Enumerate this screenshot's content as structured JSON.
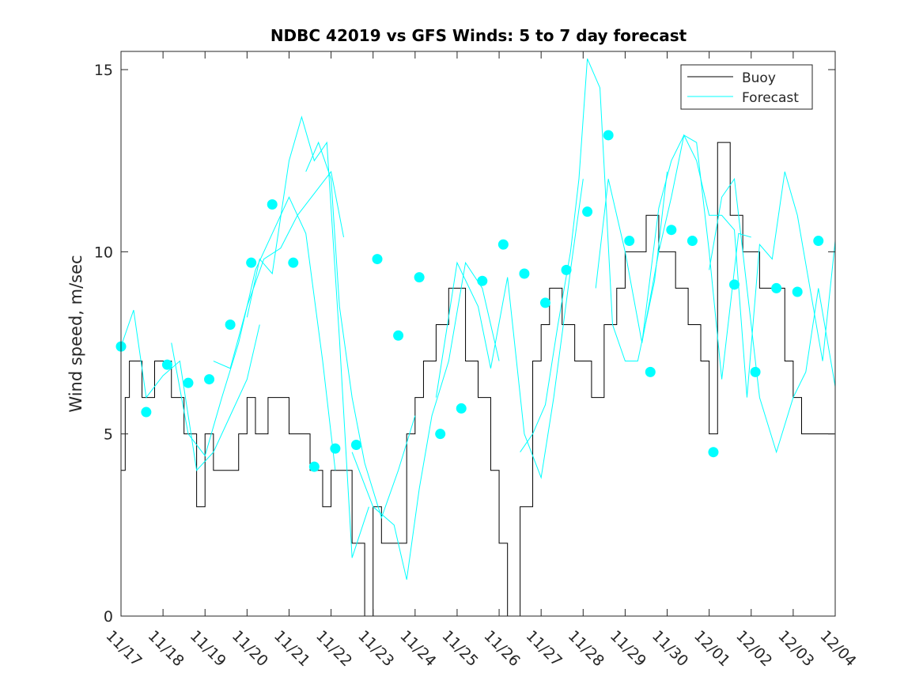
{
  "chart_data": {
    "type": "line",
    "title": "NDBC 42019 vs GFS Winds: 5 to 7 day forecast",
    "xlabel": "",
    "ylabel": "Wind speed, m/sec",
    "xlim": [
      0,
      17
    ],
    "ylim": [
      0,
      15.5
    ],
    "yticks": [
      0,
      5,
      10,
      15
    ],
    "xtick_labels": [
      "11/17",
      "11/18",
      "11/19",
      "11/20",
      "11/21",
      "11/22",
      "11/23",
      "11/24",
      "11/25",
      "11/26",
      "11/27",
      "11/28",
      "11/29",
      "11/30",
      "12/01",
      "12/02",
      "12/03",
      "12/04"
    ],
    "legend": {
      "position": "top-right",
      "entries": [
        "Buoy",
        "Forecast"
      ]
    },
    "colors": {
      "buoy": "#000000",
      "forecast": "#00ffff",
      "axis": "#262626"
    },
    "series": [
      {
        "name": "Buoy",
        "type": "step",
        "x": [
          0.0,
          0.1,
          0.2,
          0.3,
          0.5,
          0.8,
          1.0,
          1.2,
          1.5,
          1.8,
          2.0,
          2.2,
          2.5,
          2.8,
          3.0,
          3.2,
          3.5,
          3.8,
          4.0,
          4.2,
          4.5,
          4.8,
          5.0,
          5.2,
          5.5,
          5.8,
          6.0,
          6.2,
          6.5,
          6.8,
          7.0,
          7.2,
          7.5,
          7.8,
          8.0,
          8.2,
          8.5,
          8.8,
          9.0,
          9.2,
          9.5,
          9.8,
          10.0,
          10.2,
          10.5,
          10.8,
          11.0,
          11.2,
          11.5,
          11.8,
          12.0,
          12.2,
          12.5,
          12.8,
          13.0,
          13.2,
          13.5,
          13.8,
          14.0,
          14.2,
          14.5,
          14.8,
          15.0,
          15.2,
          15.5,
          15.8,
          16.0,
          16.2
        ],
        "values": [
          4,
          6,
          7,
          7,
          6,
          7,
          7,
          6,
          5,
          3,
          5,
          4,
          4,
          5,
          6,
          5,
          6,
          6,
          5,
          5,
          4,
          3,
          4,
          4,
          2,
          0,
          3,
          2,
          2,
          5,
          6,
          7,
          8,
          9,
          9,
          7,
          6,
          4,
          2,
          0,
          3,
          7,
          8,
          9,
          8,
          7,
          7,
          6,
          8,
          9,
          10,
          10,
          11,
          10,
          10,
          9,
          8,
          7,
          5,
          13,
          11,
          10,
          10,
          9,
          9,
          7,
          6,
          5
        ]
      },
      {
        "name": "Forecast",
        "type": "line",
        "runs": [
          {
            "x": [
              0.0,
              0.3,
              0.6,
              1.0,
              1.4,
              1.8,
              2.2,
              2.6,
              3.0,
              3.3
            ],
            "values": [
              7.4,
              8.4,
              6.0,
              6.6,
              7.0,
              4.0,
              4.5,
              5.5,
              6.5,
              8.0
            ]
          },
          {
            "x": [
              1.2,
              1.6,
              2.0,
              2.4,
              2.8,
              3.2,
              3.6,
              4.0,
              4.4,
              4.8,
              5.1
            ],
            "values": [
              7.5,
              5.0,
              4.4,
              6.0,
              7.5,
              9.5,
              10.5,
              11.5,
              10.5,
              7.0,
              4.0
            ]
          },
          {
            "x": [
              2.2,
              2.6,
              3.0,
              3.4,
              3.8,
              4.2,
              4.6,
              5.0,
              5.3
            ],
            "values": [
              7.0,
              6.8,
              8.5,
              9.8,
              10.1,
              11.0,
              11.6,
              12.2,
              10.4
            ]
          },
          {
            "x": [
              3.0,
              3.3,
              3.6,
              4.0,
              4.3,
              4.6,
              4.9,
              5.2,
              5.5,
              5.9
            ],
            "values": [
              8.2,
              9.8,
              9.4,
              12.5,
              13.7,
              12.5,
              13.0,
              7.6,
              1.6,
              3.0
            ]
          },
          {
            "x": [
              4.4,
              4.7,
              5.0,
              5.2,
              5.5,
              5.8,
              6.2,
              6.6,
              7.0
            ],
            "values": [
              12.2,
              13.0,
              12.0,
              8.5,
              6.0,
              4.2,
              2.7,
              4.0,
              5.5
            ]
          },
          {
            "x": [
              5.5,
              6.0,
              6.5,
              6.8,
              7.1,
              7.4,
              7.8,
              8.2,
              8.6,
              9.0
            ],
            "values": [
              4.5,
              3.0,
              2.5,
              1.0,
              3.5,
              5.5,
              7.0,
              9.7,
              9.0,
              7.0
            ]
          },
          {
            "x": [
              7.5,
              8.0,
              8.5,
              8.8,
              9.2,
              9.6,
              10.0,
              10.3,
              10.7,
              11.0
            ],
            "values": [
              6.0,
              9.7,
              8.5,
              6.8,
              9.3,
              5.0,
              3.8,
              6.0,
              9.5,
              12.0
            ]
          },
          {
            "x": [
              9.5,
              9.8,
              10.1,
              10.4,
              10.7,
              10.9,
              11.1,
              11.4,
              11.7,
              12.0,
              12.3,
              12.7,
              13.0
            ],
            "values": [
              4.5,
              5.0,
              5.8,
              8.0,
              10.0,
              12.0,
              15.3,
              14.5,
              8.0,
              7.0,
              7.0,
              9.2,
              12.2
            ]
          },
          {
            "x": [
              11.3,
              11.6,
              12.0,
              12.4,
              12.8,
              13.1,
              13.4,
              13.7,
              14.0,
              14.3,
              14.7,
              15.0
            ],
            "values": [
              9.0,
              12.0,
              10.0,
              7.5,
              11.2,
              12.5,
              13.2,
              13.0,
              10.0,
              6.5,
              10.5,
              10.4
            ]
          },
          {
            "x": [
              12.4,
              12.8,
              13.1,
              13.4,
              13.7,
              14.0,
              14.3,
              14.6,
              14.9,
              15.2,
              15.5,
              15.8,
              16.1,
              16.4,
              16.7,
              17.0
            ],
            "values": [
              7.5,
              10.0,
              11.5,
              13.2,
              12.5,
              11.0,
              11.0,
              10.6,
              6.0,
              10.2,
              9.8,
              12.2,
              11.0,
              9.0,
              7.0,
              10.3
            ]
          },
          {
            "x": [
              14.0,
              14.3,
              14.6,
              14.9,
              15.2,
              15.6,
              16.0,
              16.3,
              16.6,
              17.0
            ],
            "values": [
              9.5,
              11.5,
              12.0,
              9.0,
              6.0,
              4.5,
              6.0,
              6.7,
              9.0,
              6.3
            ]
          }
        ]
      }
    ],
    "markers": {
      "x": [
        0.0,
        0.6,
        1.1,
        1.6,
        2.1,
        2.6,
        3.1,
        3.6,
        4.1,
        4.6,
        5.1,
        5.6,
        6.1,
        6.6,
        7.1,
        7.6,
        8.1,
        8.6,
        9.1,
        9.6,
        10.1,
        10.6,
        11.1,
        11.6,
        12.1,
        12.6,
        13.1,
        13.6,
        14.1,
        14.6,
        15.1,
        15.6,
        16.1,
        16.6
      ],
      "values": [
        7.4,
        5.6,
        6.9,
        6.4,
        6.5,
        8.0,
        9.7,
        11.3,
        9.7,
        4.1,
        4.6,
        4.7,
        9.8,
        7.7,
        9.3,
        5.0,
        5.7,
        9.2,
        10.2,
        9.4,
        8.6,
        9.5,
        11.1,
        13.2,
        10.3,
        6.7,
        10.6,
        10.3,
        4.5,
        9.1,
        6.7,
        9.0,
        8.9,
        10.3
      ]
    }
  }
}
